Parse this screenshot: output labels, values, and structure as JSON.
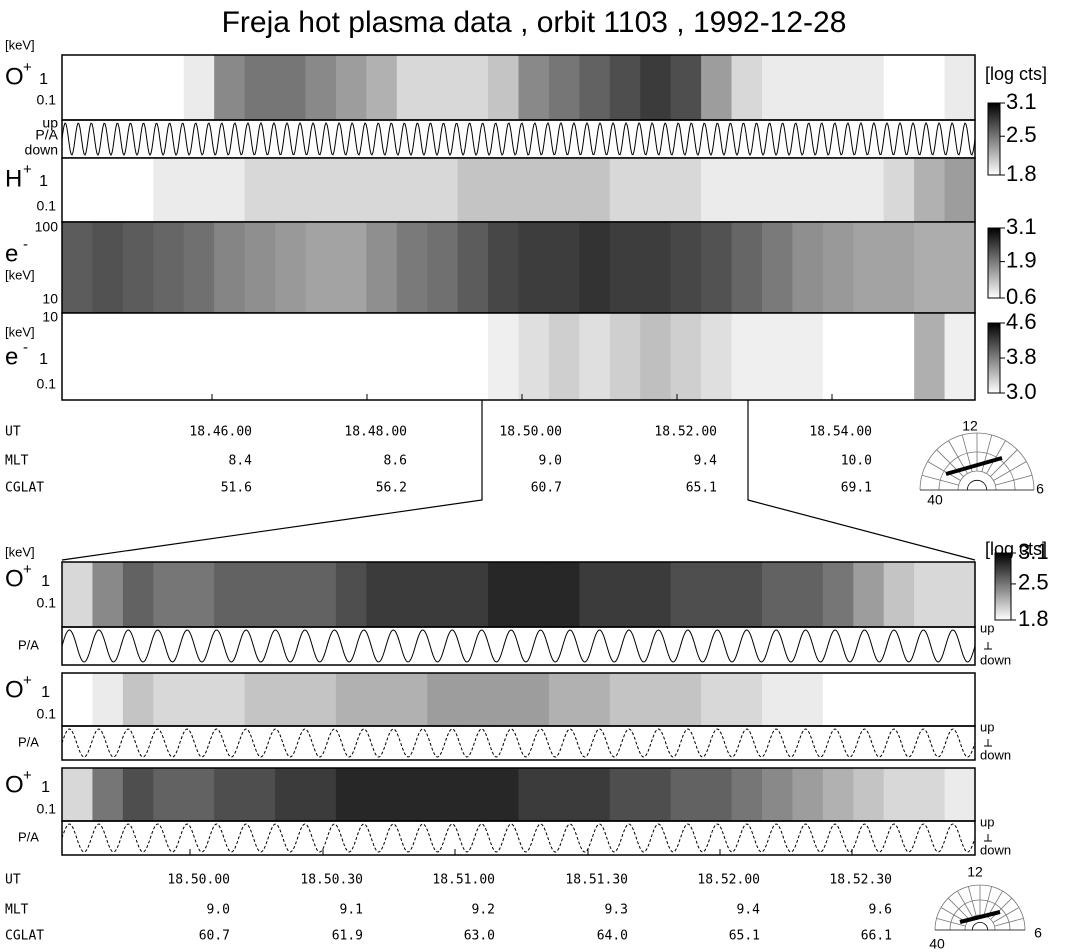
{
  "title": "Freja hot plasma data ,  orbit 1103 ,   1992-12-28",
  "top": {
    "panels": [
      {
        "unit": "[keV]",
        "species": "O",
        "charge": "+",
        "ticks": [
          "1",
          "0.1"
        ],
        "values": [
          1.8,
          1.8,
          1.8,
          1.8,
          1.9,
          2.4,
          2.5,
          2.5,
          2.4,
          2.3,
          2.2,
          2.0,
          2.0,
          2.0,
          2.1,
          2.4,
          2.5,
          2.6,
          2.7,
          2.8,
          2.7,
          2.3,
          2.0,
          1.9,
          1.9,
          1.9,
          1.9,
          1.8,
          1.8,
          1.9
        ]
      },
      {
        "pitch": [
          "up",
          "P/A",
          "down"
        ]
      },
      {
        "species": "H",
        "charge": "+",
        "ticks": [
          "1",
          "0.1"
        ],
        "values": [
          1.8,
          1.8,
          1.8,
          1.9,
          1.9,
          1.9,
          2.0,
          2.0,
          2.0,
          2.0,
          2.0,
          2.0,
          2.0,
          2.1,
          2.1,
          2.1,
          2.1,
          2.1,
          2.0,
          2.0,
          2.0,
          1.9,
          1.9,
          1.9,
          1.9,
          1.9,
          1.9,
          2.0,
          2.2,
          2.3
        ]
      },
      {
        "species": "e",
        "charge": "-",
        "ticks": [
          "100",
          "[keV]",
          "10"
        ],
        "values": [
          2.2,
          2.3,
          2.2,
          2.1,
          2.0,
          1.8,
          1.7,
          1.6,
          1.5,
          1.5,
          1.7,
          1.9,
          2.0,
          2.2,
          2.4,
          2.5,
          2.5,
          2.6,
          2.5,
          2.5,
          2.4,
          2.3,
          2.1,
          1.9,
          1.7,
          1.6,
          1.5,
          1.5,
          1.4,
          1.4
        ]
      },
      {
        "species": "e",
        "charge": "-",
        "ticks": [
          "10",
          "[keV]",
          "1",
          "0.1"
        ],
        "values": [
          3.0,
          3.0,
          3.0,
          3.0,
          3.0,
          3.0,
          3.0,
          3.0,
          3.0,
          3.0,
          3.0,
          3.0,
          3.0,
          3.0,
          3.1,
          3.2,
          3.3,
          3.2,
          3.3,
          3.4,
          3.3,
          3.2,
          3.1,
          3.1,
          3.1,
          3.0,
          3.0,
          3.0,
          3.5,
          3.1
        ]
      }
    ],
    "colorbar_unit": "[log cts]",
    "colorbars": [
      {
        "range": [
          1.8,
          3.1
        ],
        "ticks": [
          3.1,
          2.5,
          1.8
        ]
      },
      {
        "range": [
          0.6,
          3.1
        ],
        "ticks": [
          3.1,
          1.9,
          0.6
        ]
      },
      {
        "range": [
          3.0,
          4.6
        ],
        "ticks": [
          4.6,
          3.8,
          {
            "value": 3.0,
            "label": "3.0"
          }
        ]
      }
    ],
    "rows": [
      {
        "label": "UT",
        "values": [
          "18.46.00",
          "18.48.00",
          "18.50.00",
          "18.52.00",
          "18.54.00"
        ]
      },
      {
        "label": "MLT",
        "values": [
          "8.4",
          "8.6",
          "9.0",
          "9.4",
          "10.0"
        ]
      },
      {
        "label": "CGLAT",
        "values": [
          "51.6",
          "56.2",
          "60.7",
          "65.1",
          "69.1"
        ]
      }
    ],
    "dial": [
      "12",
      "40",
      "6"
    ]
  },
  "bottom": {
    "unit": "[keV]",
    "colorbar_unit": "[log cts]",
    "colorbar": {
      "range": [
        1.8,
        3.1
      ],
      "ticks": [
        3.1,
        2.5,
        1.8
      ]
    },
    "groups": [
      {
        "species": "O",
        "charge": "+",
        "ticks": [
          "1",
          "0.1"
        ],
        "pitch": "P/A",
        "direction": [
          "up",
          "down"
        ],
        "values": [
          2.0,
          2.4,
          2.6,
          2.5,
          2.5,
          2.6,
          2.6,
          2.6,
          2.6,
          2.7,
          2.8,
          2.8,
          2.8,
          2.8,
          2.9,
          2.9,
          2.9,
          2.8,
          2.8,
          2.8,
          2.7,
          2.7,
          2.7,
          2.6,
          2.6,
          2.5,
          2.3,
          2.1,
          2.0,
          2.0
        ]
      },
      {
        "species": "O",
        "charge": "+",
        "ticks": [
          "1",
          "0.1"
        ],
        "pitch": "P/A",
        "direction": [
          "up",
          "down"
        ],
        "values": [
          1.8,
          1.9,
          2.1,
          2.0,
          2.0,
          2.0,
          2.1,
          2.1,
          2.1,
          2.2,
          2.2,
          2.2,
          2.3,
          2.3,
          2.3,
          2.3,
          2.2,
          2.2,
          2.1,
          2.1,
          2.1,
          2.0,
          2.0,
          1.9,
          1.9,
          1.8,
          1.8,
          1.8,
          1.8,
          1.8
        ]
      },
      {
        "species": "O",
        "charge": "+",
        "ticks": [
          "1",
          "0.1"
        ],
        "pitch": "P/A",
        "direction": [
          "up",
          "down"
        ],
        "values": [
          2.0,
          2.5,
          2.7,
          2.6,
          2.6,
          2.7,
          2.7,
          2.8,
          2.8,
          2.9,
          2.9,
          2.9,
          2.9,
          2.9,
          2.9,
          2.8,
          2.8,
          2.8,
          2.7,
          2.7,
          2.6,
          2.6,
          2.5,
          2.4,
          2.3,
          2.2,
          2.1,
          2.0,
          2.0,
          1.9
        ]
      }
    ],
    "rows": [
      {
        "label": "UT",
        "values": [
          "18.50.00",
          "18.50.30",
          "18.51.00",
          "18.51.30",
          "18.52.00",
          "18.52.30"
        ]
      },
      {
        "label": "MLT",
        "values": [
          "9.0",
          "9.1",
          "9.2",
          "9.3",
          "9.4",
          "9.6"
        ]
      },
      {
        "label": "CGLAT",
        "values": [
          "60.7",
          "61.9",
          "63.0",
          "64.0",
          "65.1",
          "66.1"
        ]
      }
    ],
    "dial": [
      "12",
      "40",
      "6"
    ]
  }
}
